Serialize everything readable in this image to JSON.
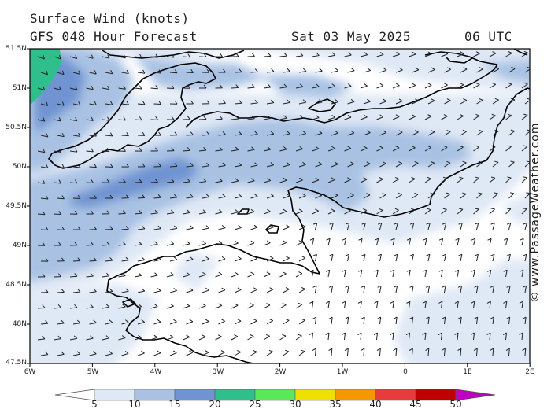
{
  "header": {
    "title": "Surface Wind (knots)",
    "model": "GFS 048 Hour Forecast",
    "date": "Sat 03 May 2025",
    "time": "06 UTC"
  },
  "credit": "© www.PassageWeather.com",
  "map": {
    "lat_labels": [
      "51.5N",
      "51N",
      "50.5N",
      "50N",
      "49.5N",
      "49N",
      "48.5N",
      "48N",
      "47.5N"
    ],
    "lon_labels": [
      "6W",
      "5W",
      "4W",
      "3W",
      "2W",
      "1W",
      "0",
      "1E",
      "2E"
    ],
    "lat_range": [
      47.5,
      51.5
    ],
    "lon_range": [
      -6,
      2
    ],
    "coast_color": "#000000",
    "arrow_color": "#222222"
  },
  "colorbar": {
    "labels": [
      "5",
      "10",
      "15",
      "20",
      "25",
      "30",
      "35",
      "40",
      "45",
      "50"
    ],
    "colors": [
      "#ffffff",
      "#dfe8f5",
      "#a9c2e4",
      "#7094d2",
      "#2fbf8c",
      "#5ae85a",
      "#f0e000",
      "#f59800",
      "#e83c3c",
      "#c00000",
      "#c000c0"
    ]
  }
}
